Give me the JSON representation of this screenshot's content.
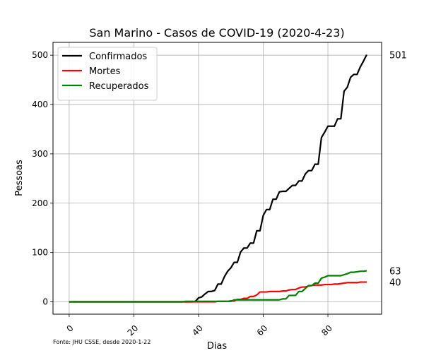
{
  "chart_data": {
    "type": "line",
    "title": "San Marino - Casos de COVID-19 (2020-4-23)",
    "xlabel": "Dias",
    "ylabel": "Pessoas",
    "xlim": [
      -5,
      96.6
    ],
    "ylim": [
      -25,
      526
    ],
    "xticks": [
      0,
      20,
      40,
      60,
      80
    ],
    "yticks": [
      0,
      100,
      200,
      300,
      400,
      500
    ],
    "grid": true,
    "legend_position": "top-left",
    "source_note": "Fonte: JHU CSSE, desde 2020-1-22",
    "series": [
      {
        "name": "Confirmados",
        "color": "#000000",
        "end_label": "501",
        "points": [
          [
            0,
            0
          ],
          [
            38,
            0
          ],
          [
            39,
            1
          ],
          [
            40,
            8
          ],
          [
            41,
            10
          ],
          [
            42,
            16
          ],
          [
            43,
            21
          ],
          [
            44,
            21
          ],
          [
            45,
            23
          ],
          [
            46,
            36
          ],
          [
            47,
            36
          ],
          [
            48,
            51
          ],
          [
            49,
            62
          ],
          [
            50,
            69
          ],
          [
            51,
            80
          ],
          [
            52,
            80
          ],
          [
            53,
            101
          ],
          [
            54,
            109
          ],
          [
            55,
            109
          ],
          [
            56,
            119
          ],
          [
            57,
            119
          ],
          [
            58,
            144
          ],
          [
            59,
            144
          ],
          [
            60,
            175
          ],
          [
            61,
            187
          ],
          [
            62,
            187
          ],
          [
            63,
            208
          ],
          [
            64,
            208
          ],
          [
            65,
            223
          ],
          [
            66,
            224
          ],
          [
            67,
            224
          ],
          [
            68,
            230
          ],
          [
            69,
            236
          ],
          [
            70,
            236
          ],
          [
            71,
            245
          ],
          [
            72,
            245
          ],
          [
            73,
            259
          ],
          [
            74,
            266
          ],
          [
            75,
            266
          ],
          [
            76,
            279
          ],
          [
            77,
            279
          ],
          [
            78,
            333
          ],
          [
            79,
            344
          ],
          [
            80,
            356
          ],
          [
            81,
            356
          ],
          [
            82,
            356
          ],
          [
            83,
            371
          ],
          [
            84,
            371
          ],
          [
            85,
            427
          ],
          [
            86,
            435
          ],
          [
            87,
            455
          ],
          [
            88,
            461
          ],
          [
            89,
            461
          ],
          [
            90,
            476
          ],
          [
            91,
            488
          ],
          [
            92,
            501
          ]
        ]
      },
      {
        "name": "Mortes",
        "color": "#ff0000",
        "end_label": "40",
        "points": [
          [
            0,
            0
          ],
          [
            45,
            0
          ],
          [
            46,
            1
          ],
          [
            47,
            1
          ],
          [
            48,
            1
          ],
          [
            49,
            1
          ],
          [
            50,
            2
          ],
          [
            51,
            2
          ],
          [
            52,
            5
          ],
          [
            53,
            5
          ],
          [
            54,
            7
          ],
          [
            55,
            7
          ],
          [
            56,
            11
          ],
          [
            57,
            11
          ],
          [
            58,
            14
          ],
          [
            59,
            20
          ],
          [
            60,
            20
          ],
          [
            61,
            20
          ],
          [
            62,
            21
          ],
          [
            63,
            21
          ],
          [
            64,
            21
          ],
          [
            65,
            21
          ],
          [
            66,
            22
          ],
          [
            67,
            22
          ],
          [
            68,
            24
          ],
          [
            69,
            25
          ],
          [
            70,
            25
          ],
          [
            71,
            28
          ],
          [
            72,
            30
          ],
          [
            73,
            30
          ],
          [
            74,
            32
          ],
          [
            75,
            33
          ],
          [
            76,
            34
          ],
          [
            77,
            34
          ],
          [
            78,
            34
          ],
          [
            79,
            35
          ],
          [
            80,
            35
          ],
          [
            81,
            35
          ],
          [
            82,
            36
          ],
          [
            83,
            36
          ],
          [
            84,
            37
          ],
          [
            85,
            38
          ],
          [
            86,
            39
          ],
          [
            87,
            39
          ],
          [
            88,
            39
          ],
          [
            89,
            39
          ],
          [
            90,
            40
          ],
          [
            91,
            40
          ],
          [
            92,
            40
          ]
        ]
      },
      {
        "name": "Recuperados",
        "color": "#008000",
        "end_label": "63",
        "points": [
          [
            0,
            0
          ],
          [
            35,
            0
          ],
          [
            36,
            1
          ],
          [
            37,
            1
          ],
          [
            38,
            1
          ],
          [
            39,
            1
          ],
          [
            40,
            1
          ],
          [
            41,
            1
          ],
          [
            42,
            1
          ],
          [
            43,
            1
          ],
          [
            44,
            1
          ],
          [
            45,
            1
          ],
          [
            46,
            1
          ],
          [
            47,
            1
          ],
          [
            48,
            1
          ],
          [
            49,
            1
          ],
          [
            50,
            1
          ],
          [
            51,
            4
          ],
          [
            52,
            4
          ],
          [
            53,
            4
          ],
          [
            54,
            4
          ],
          [
            55,
            4
          ],
          [
            56,
            4
          ],
          [
            57,
            4
          ],
          [
            58,
            4
          ],
          [
            59,
            4
          ],
          [
            60,
            4
          ],
          [
            61,
            4
          ],
          [
            62,
            4
          ],
          [
            63,
            4
          ],
          [
            64,
            4
          ],
          [
            65,
            4
          ],
          [
            66,
            6
          ],
          [
            67,
            6
          ],
          [
            68,
            13
          ],
          [
            69,
            13
          ],
          [
            70,
            13
          ],
          [
            71,
            21
          ],
          [
            72,
            21
          ],
          [
            73,
            27
          ],
          [
            74,
            33
          ],
          [
            75,
            33
          ],
          [
            76,
            38
          ],
          [
            77,
            38
          ],
          [
            78,
            48
          ],
          [
            79,
            50
          ],
          [
            80,
            53
          ],
          [
            81,
            53
          ],
          [
            82,
            53
          ],
          [
            83,
            53
          ],
          [
            84,
            53
          ],
          [
            85,
            55
          ],
          [
            86,
            57
          ],
          [
            87,
            60
          ],
          [
            88,
            60
          ],
          [
            89,
            61
          ],
          [
            90,
            62
          ],
          [
            91,
            62
          ],
          [
            92,
            63
          ]
        ]
      }
    ]
  }
}
